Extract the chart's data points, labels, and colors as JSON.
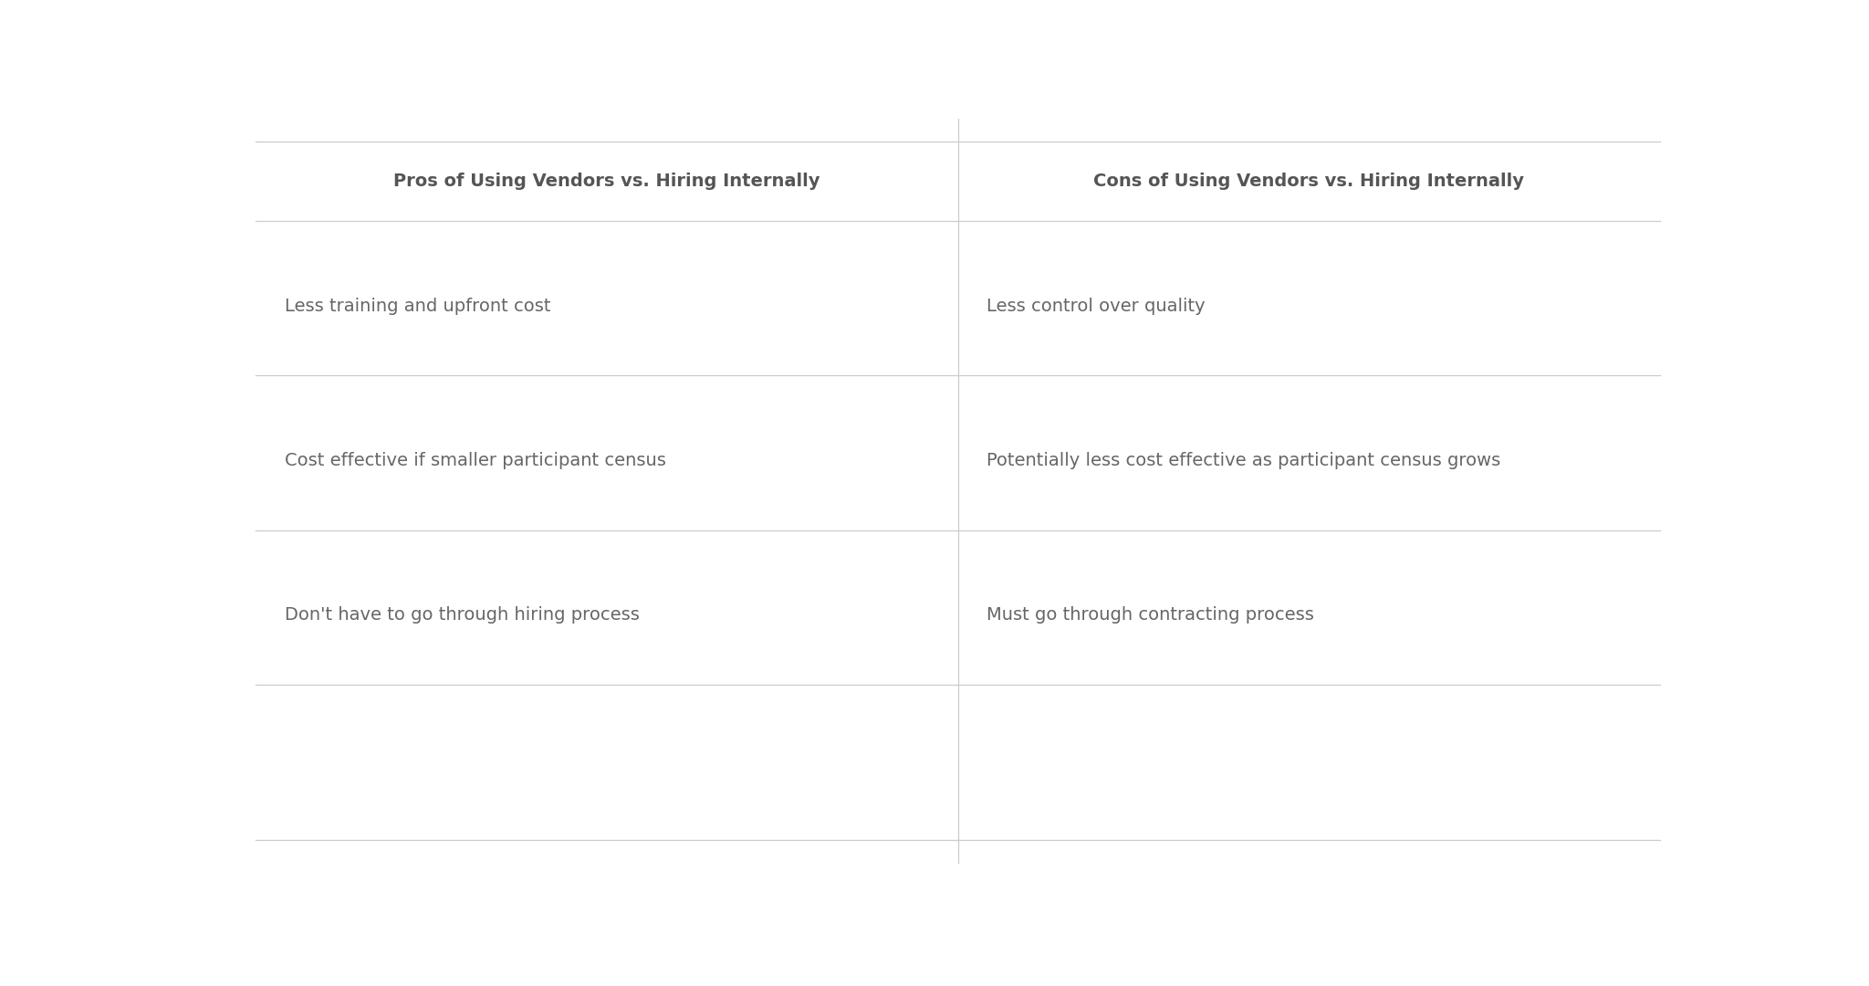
{
  "col1_header": "Pros of Using Vendors vs. Hiring Internally",
  "col2_header": "Cons of Using Vendors vs. Hiring Internally",
  "rows": [
    [
      "Less training and upfront cost",
      "Less control over quality"
    ],
    [
      "Cost effective if smaller participant census",
      "Potentially less cost effective as participant census grows"
    ],
    [
      "Don't have to go through hiring process",
      "Must go through contracting process"
    ],
    [
      "",
      ""
    ]
  ],
  "background_color": "#ffffff",
  "header_text_color": "#555555",
  "cell_text_color": "#666666",
  "line_color": "#cccccc",
  "header_font_size": 14,
  "cell_font_size": 14,
  "fig_width": 20.48,
  "fig_height": 10.8
}
